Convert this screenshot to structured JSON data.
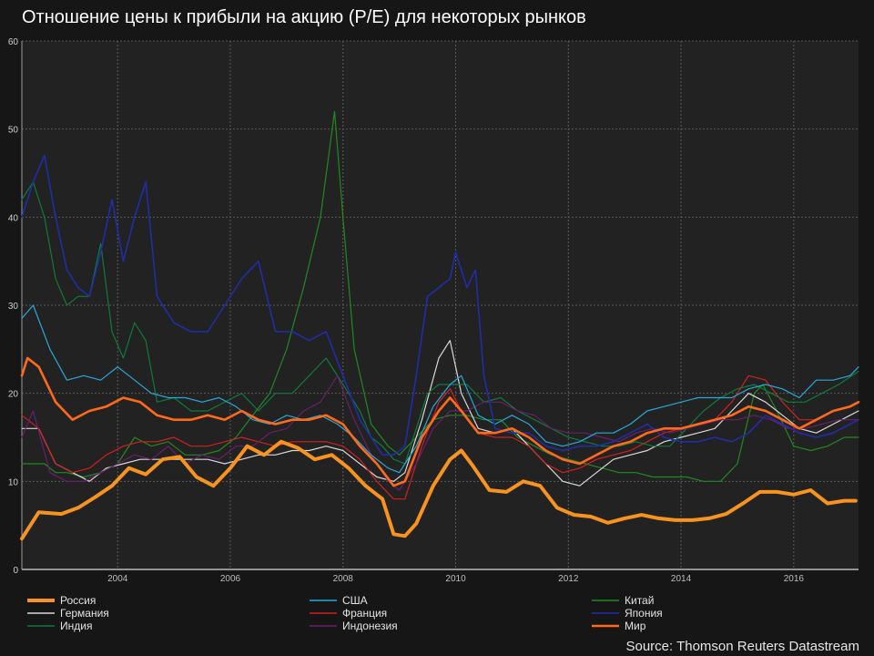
{
  "chart_data": {
    "type": "line",
    "title": "Отношение цены к прибыли на акцию (P/E) для некоторых рынков",
    "source": "Source: Thomson Reuters Datastream",
    "xlim": [
      2002.3,
      2017.15
    ],
    "ylim": [
      0,
      60
    ],
    "yticks": [
      0,
      10,
      20,
      30,
      40,
      50,
      60
    ],
    "xticks": [
      2004,
      2006,
      2008,
      2010,
      2012,
      2014,
      2016
    ],
    "grid": true,
    "legend_position": "bottom",
    "series": [
      {
        "name": "Россия",
        "color": "#f7931e",
        "width": 4,
        "x": [
          2002.3,
          2002.6,
          2003.0,
          2003.3,
          2003.6,
          2003.9,
          2004.2,
          2004.5,
          2004.8,
          2005.1,
          2005.4,
          2005.7,
          2006.0,
          2006.3,
          2006.6,
          2006.9,
          2007.2,
          2007.5,
          2007.8,
          2008.1,
          2008.4,
          2008.7,
          2008.9,
          2009.1,
          2009.3,
          2009.6,
          2009.9,
          2010.1,
          2010.3,
          2010.6,
          2010.9,
          2011.2,
          2011.5,
          2011.8,
          2012.1,
          2012.4,
          2012.7,
          2013.0,
          2013.3,
          2013.6,
          2013.9,
          2014.2,
          2014.5,
          2014.8,
          2015.1,
          2015.4,
          2015.7,
          2016.0,
          2016.3,
          2016.6,
          2016.9,
          2017.1
        ],
        "y": [
          3.5,
          6.5,
          6.3,
          7,
          8.2,
          9.5,
          11.5,
          10.8,
          12.5,
          12.8,
          10.5,
          9.5,
          11.5,
          14,
          13,
          14.5,
          13.8,
          12.5,
          13,
          11.5,
          9.5,
          8,
          4,
          3.8,
          5.2,
          9.5,
          12.5,
          13.5,
          11.8,
          9,
          8.8,
          10,
          9.5,
          7,
          6.2,
          6,
          5.3,
          5.8,
          6.2,
          5.8,
          5.6,
          5.6,
          5.8,
          6.3,
          7.5,
          8.8,
          8.8,
          8.5,
          9,
          7.5,
          7.8,
          7.8
        ]
      },
      {
        "name": "США",
        "color": "#29a8d8",
        "width": 1.2,
        "x": [
          2002.3,
          2002.5,
          2002.8,
          2003.1,
          2003.4,
          2003.7,
          2004.0,
          2004.3,
          2004.6,
          2004.9,
          2005.2,
          2005.5,
          2005.8,
          2006.1,
          2006.4,
          2006.7,
          2007.0,
          2007.3,
          2007.6,
          2007.9,
          2008.2,
          2008.5,
          2008.8,
          2009.0,
          2009.3,
          2009.6,
          2009.9,
          2010.1,
          2010.4,
          2010.7,
          2011.0,
          2011.3,
          2011.6,
          2011.9,
          2012.2,
          2012.5,
          2012.8,
          2013.1,
          2013.4,
          2013.7,
          2014.0,
          2014.3,
          2014.6,
          2014.9,
          2015.2,
          2015.5,
          2015.8,
          2016.1,
          2016.4,
          2016.7,
          2017.0,
          2017.15
        ],
        "y": [
          28.5,
          30,
          25,
          21.5,
          22,
          21.5,
          23,
          21.5,
          20,
          19.5,
          19.5,
          19,
          19.5,
          18.5,
          17,
          16.5,
          17.5,
          17,
          17.5,
          16.5,
          15,
          13,
          11.5,
          11,
          14,
          18.5,
          21,
          22,
          17.5,
          16.5,
          17.5,
          16.5,
          14.5,
          14,
          14.5,
          15.5,
          15.5,
          16.5,
          18,
          18.5,
          19,
          19.5,
          19.5,
          19.5,
          20.5,
          21,
          20.5,
          19.5,
          21.5,
          21.5,
          22,
          23
        ]
      },
      {
        "name": "Китай",
        "color": "#1f8a1f",
        "width": 1.2,
        "x": [
          2002.3,
          2002.5,
          2002.7,
          2002.9,
          2003.1,
          2003.4,
          2003.7,
          2004.0,
          2004.3,
          2004.6,
          2004.9,
          2005.2,
          2005.5,
          2005.8,
          2006.1,
          2006.4,
          2006.7,
          2007.0,
          2007.3,
          2007.6,
          2007.85,
          2008.0,
          2008.2,
          2008.5,
          2008.8,
          2009.0,
          2009.3,
          2009.6,
          2009.9,
          2010.2,
          2010.5,
          2010.8,
          2011.1,
          2011.4,
          2011.7,
          2012.0,
          2012.3,
          2012.6,
          2012.9,
          2013.2,
          2013.5,
          2013.8,
          2014.1,
          2014.4,
          2014.7,
          2015.0,
          2015.3,
          2015.45,
          2015.7,
          2016.0,
          2016.3,
          2016.6,
          2016.9,
          2017.15
        ],
        "y": [
          12,
          12,
          12,
          11,
          11,
          10.5,
          11,
          12,
          15,
          14,
          14.5,
          13,
          13,
          13.5,
          15,
          17.5,
          20,
          25,
          32,
          40,
          52,
          40,
          25,
          16.5,
          14,
          13,
          15,
          17,
          17.5,
          17.5,
          17,
          17,
          15,
          14,
          13,
          12.5,
          12,
          11.5,
          11,
          11,
          10.5,
          10.5,
          10.5,
          10,
          10,
          12,
          20,
          21,
          18,
          14,
          13.5,
          14,
          15,
          15
        ]
      },
      {
        "name": "Германия",
        "color": "#d8d8d8",
        "width": 1.2,
        "x": [
          2002.3,
          2002.6,
          2002.9,
          2003.2,
          2003.5,
          2003.8,
          2004.1,
          2004.4,
          2004.7,
          2005.0,
          2005.3,
          2005.6,
          2005.9,
          2006.2,
          2006.5,
          2006.8,
          2007.1,
          2007.4,
          2007.7,
          2008.0,
          2008.3,
          2008.6,
          2008.9,
          2009.1,
          2009.4,
          2009.7,
          2009.9,
          2010.1,
          2010.4,
          2010.7,
          2011.0,
          2011.3,
          2011.6,
          2011.9,
          2012.2,
          2012.5,
          2012.8,
          2013.1,
          2013.4,
          2013.7,
          2014.0,
          2014.3,
          2014.6,
          2014.9,
          2015.2,
          2015.5,
          2015.8,
          2016.1,
          2016.4,
          2016.7,
          2017.0,
          2017.15
        ],
        "y": [
          16,
          16,
          12,
          11,
          10,
          11.5,
          12,
          12.5,
          12.5,
          12.5,
          12.5,
          12.5,
          12,
          12.5,
          13,
          13,
          13.5,
          13.5,
          14,
          13.5,
          12,
          10.5,
          10,
          11,
          17,
          24,
          26,
          20,
          16,
          15.5,
          16,
          14,
          12,
          10,
          9.5,
          11,
          12.5,
          13,
          13.5,
          14.5,
          15,
          15.5,
          16,
          18,
          20,
          19,
          17.5,
          16,
          15.5,
          16.5,
          17.5,
          18
        ]
      },
      {
        "name": "Франция",
        "color": "#d11f1f",
        "width": 1.2,
        "x": [
          2002.3,
          2002.6,
          2002.9,
          2003.2,
          2003.5,
          2003.8,
          2004.1,
          2004.4,
          2004.7,
          2005.0,
          2005.3,
          2005.6,
          2005.9,
          2006.2,
          2006.5,
          2006.8,
          2007.1,
          2007.4,
          2007.7,
          2008.0,
          2008.3,
          2008.6,
          2008.9,
          2009.1,
          2009.4,
          2009.7,
          2009.9,
          2010.1,
          2010.4,
          2010.7,
          2011.0,
          2011.3,
          2011.6,
          2011.9,
          2012.2,
          2012.5,
          2012.8,
          2013.1,
          2013.4,
          2013.7,
          2014.0,
          2014.3,
          2014.6,
          2014.9,
          2015.2,
          2015.5,
          2015.8,
          2016.1,
          2016.4,
          2016.7,
          2017.0,
          2017.15
        ],
        "y": [
          17.5,
          16,
          12,
          11,
          11.5,
          13,
          14,
          14.5,
          14.5,
          15,
          14,
          14,
          14.5,
          15,
          14.5,
          14,
          14.5,
          14.5,
          14.5,
          14,
          12.5,
          10,
          8,
          8,
          14,
          19,
          20.5,
          18,
          15.5,
          15,
          15,
          14,
          12,
          11,
          11.5,
          12.5,
          13,
          13.5,
          14.5,
          15.5,
          16,
          16.5,
          17,
          19,
          22,
          21.5,
          19,
          17,
          17,
          18,
          18.5,
          19
        ]
      },
      {
        "name": "Япония",
        "color": "#1f2ea8",
        "width": 1.6,
        "x": [
          2002.3,
          2002.5,
          2002.7,
          2002.9,
          2003.1,
          2003.3,
          2003.5,
          2003.7,
          2003.9,
          2004.1,
          2004.3,
          2004.5,
          2004.7,
          2005.0,
          2005.3,
          2005.6,
          2005.9,
          2006.2,
          2006.5,
          2006.8,
          2007.1,
          2007.4,
          2007.7,
          2008.0,
          2008.3,
          2008.5,
          2008.7,
          2008.9,
          2009.1,
          2009.3,
          2009.5,
          2009.7,
          2009.9,
          2010.0,
          2010.2,
          2010.35,
          2010.5,
          2010.7,
          2011.0,
          2011.3,
          2011.6,
          2011.9,
          2012.2,
          2012.5,
          2012.8,
          2013.1,
          2013.4,
          2013.7,
          2014.0,
          2014.3,
          2014.6,
          2014.9,
          2015.2,
          2015.5,
          2015.8,
          2016.1,
          2016.4,
          2016.7,
          2017.0,
          2017.15
        ],
        "y": [
          40,
          44,
          47,
          40,
          34,
          32,
          31,
          36,
          42,
          35,
          40,
          44,
          31,
          28,
          27,
          27,
          30,
          33,
          35,
          27,
          27,
          26,
          27,
          22,
          17,
          15,
          13,
          13,
          14,
          22,
          31,
          32,
          33,
          36,
          32,
          34,
          22,
          16,
          15.5,
          15.5,
          14,
          13.5,
          14,
          14,
          14.5,
          15.5,
          16.5,
          15,
          14.5,
          14.5,
          15,
          14.5,
          15.5,
          17.5,
          16.5,
          15.5,
          15,
          15.5,
          16.5,
          17
        ]
      },
      {
        "name": "Индия",
        "color": "#0f7a3a",
        "width": 1.2,
        "x": [
          2002.3,
          2002.5,
          2002.7,
          2002.9,
          2003.1,
          2003.3,
          2003.5,
          2003.7,
          2003.9,
          2004.1,
          2004.3,
          2004.5,
          2004.7,
          2005.0,
          2005.3,
          2005.6,
          2005.9,
          2006.2,
          2006.5,
          2006.8,
          2007.1,
          2007.4,
          2007.7,
          2008.0,
          2008.3,
          2008.5,
          2008.7,
          2008.9,
          2009.1,
          2009.3,
          2009.5,
          2009.7,
          2009.9,
          2010.2,
          2010.5,
          2010.8,
          2011.1,
          2011.4,
          2011.7,
          2012.0,
          2012.3,
          2012.6,
          2012.9,
          2013.2,
          2013.5,
          2013.8,
          2014.1,
          2014.4,
          2014.7,
          2015.0,
          2015.3,
          2015.6,
          2015.9,
          2016.2,
          2016.5,
          2016.8,
          2017.15
        ],
        "y": [
          42,
          44,
          40,
          33,
          30,
          31,
          31,
          37,
          27,
          24,
          28,
          26,
          19,
          19.5,
          18,
          18,
          19,
          20,
          18,
          20,
          20,
          22,
          24,
          21,
          18,
          15,
          14,
          12.5,
          12,
          16,
          20,
          21,
          21,
          21,
          19,
          19.5,
          18,
          17,
          16,
          15,
          14.5,
          14,
          14,
          14.5,
          14,
          14,
          16,
          18,
          19.5,
          20.5,
          21,
          20,
          19,
          19,
          20,
          21,
          22.5
        ]
      },
      {
        "name": "Индонезия",
        "color": "#6a1f6a",
        "width": 1.2,
        "x": [
          2002.3,
          2002.5,
          2002.8,
          2003.1,
          2003.4,
          2003.7,
          2004.0,
          2004.3,
          2004.6,
          2004.9,
          2005.2,
          2005.5,
          2005.8,
          2006.1,
          2006.4,
          2006.7,
          2007.0,
          2007.3,
          2007.6,
          2007.9,
          2008.2,
          2008.5,
          2008.8,
          2009.0,
          2009.3,
          2009.6,
          2009.9,
          2010.2,
          2010.5,
          2010.8,
          2011.1,
          2011.4,
          2011.7,
          2012.0,
          2012.3,
          2012.6,
          2012.9,
          2013.2,
          2013.5,
          2013.8,
          2014.1,
          2014.4,
          2014.7,
          2015.0,
          2015.3,
          2015.6,
          2015.9,
          2016.2,
          2016.5,
          2016.8,
          2017.15
        ],
        "y": [
          15,
          18,
          11,
          10,
          10,
          11,
          12,
          13,
          12.5,
          14,
          12,
          13,
          12.5,
          14,
          14,
          15.5,
          16,
          18,
          19,
          22,
          17,
          13,
          10,
          9,
          12,
          16,
          18,
          18,
          19,
          19,
          18,
          17.5,
          16,
          15.5,
          15.5,
          15,
          14.5,
          15.5,
          16,
          15.5,
          16,
          16.5,
          17,
          17,
          17.5,
          17,
          16,
          16,
          16.5,
          17,
          17
        ]
      },
      {
        "name": "Мир",
        "color": "#ff6a1a",
        "width": 2.6,
        "x": [
          2002.3,
          2002.4,
          2002.6,
          2002.9,
          2003.2,
          2003.5,
          2003.8,
          2004.1,
          2004.4,
          2004.7,
          2005.0,
          2005.3,
          2005.6,
          2005.9,
          2006.2,
          2006.5,
          2006.8,
          2007.1,
          2007.4,
          2007.7,
          2008.0,
          2008.3,
          2008.6,
          2008.9,
          2009.1,
          2009.4,
          2009.7,
          2009.9,
          2010.1,
          2010.4,
          2010.7,
          2011.0,
          2011.3,
          2011.6,
          2011.9,
          2012.2,
          2012.5,
          2012.8,
          2013.1,
          2013.4,
          2013.7,
          2014.0,
          2014.3,
          2014.6,
          2014.9,
          2015.2,
          2015.5,
          2015.8,
          2016.1,
          2016.4,
          2016.7,
          2017.0,
          2017.15
        ],
        "y": [
          22,
          24,
          23,
          19,
          17,
          18,
          18.5,
          19.5,
          19,
          17.5,
          17,
          17,
          17.5,
          17,
          18,
          17,
          16.5,
          17,
          17,
          17.5,
          16.5,
          14,
          12,
          9.5,
          10,
          15,
          18,
          19.5,
          18,
          15.5,
          15.5,
          16,
          15,
          13.5,
          12.5,
          12,
          13,
          14,
          14.5,
          15.5,
          16,
          16,
          16.5,
          17,
          17.5,
          18.5,
          18,
          17,
          16,
          17,
          18,
          18.5,
          19
        ]
      }
    ]
  },
  "legend_columns": [
    [
      "Россия",
      "Германия",
      "Индия"
    ],
    [
      "США",
      "Франция",
      "Индонезия"
    ],
    [
      "Китай",
      "Япония",
      "Мир"
    ]
  ]
}
